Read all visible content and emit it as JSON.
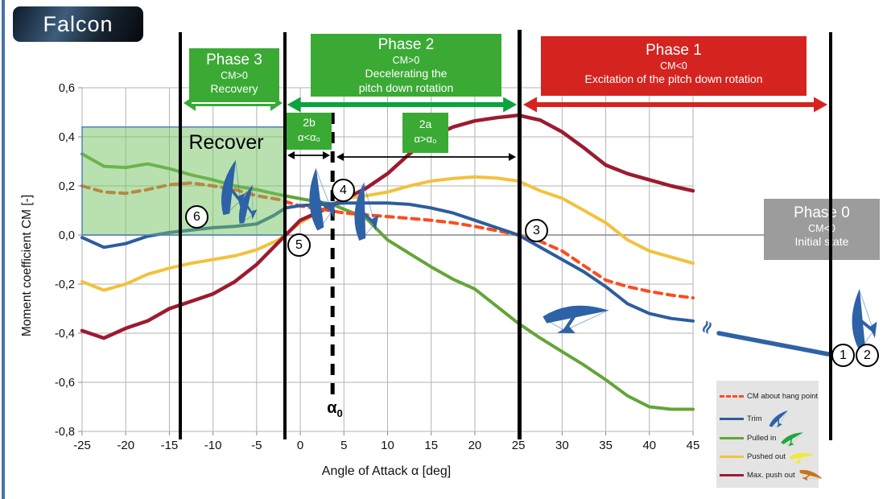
{
  "logo": {
    "text": "Falcon"
  },
  "colors": {
    "phase_green": "#3aaa35",
    "arrow_green": "#0aa33c",
    "phase_red": "#d52320",
    "phase_gray": "#9c9c9c",
    "trim_blue": "#2c5d9d",
    "pulled_green": "#63a537",
    "pushed_yellow": "#f2c23e",
    "max_dark_red": "#9c1b31",
    "hangpoint_orange": "#fb4c1f",
    "region_fill": "rgba(116,196,98,0.5)",
    "region_border": "#4f81bd",
    "glider_blue": "#2e62a6",
    "grid": "#b3b3b3",
    "zero_line": "#878787"
  },
  "chart_data": {
    "type": "line",
    "title": "",
    "xlabel": "Angle of Attack α [deg]",
    "ylabel": "Moment coefficient CM [-]",
    "xlim": [
      -25,
      45
    ],
    "ylim": [
      -0.8,
      0.6
    ],
    "x_ticks": [
      -25,
      -20,
      -15,
      -10,
      -5,
      0,
      5,
      10,
      15,
      20,
      25,
      30,
      35,
      40,
      45
    ],
    "y_ticks": [
      0.6,
      0.4,
      0.2,
      0.0,
      -0.2,
      -0.4,
      -0.6,
      -0.8
    ],
    "y_tick_labels": [
      "0,6",
      "0,4",
      "0,2",
      "0,0",
      "-0,2",
      "-0,4",
      "-0,6",
      "-0,8"
    ],
    "grid": true,
    "alpha0": 3.7,
    "phase_boundaries_alpha": [
      -13.8,
      -1.7,
      25
    ],
    "recover_region": {
      "x": [
        -25,
        -1.7
      ],
      "y": [
        0.0,
        0.44
      ]
    },
    "series": [
      {
        "name": "CM about hang point",
        "color": "#fb4c1f",
        "dash": true,
        "points": [
          [
            -25,
            0.2
          ],
          [
            -22.5,
            0.175
          ],
          [
            -20,
            0.17
          ],
          [
            -17.5,
            0.185
          ],
          [
            -15,
            0.205
          ],
          [
            -12.5,
            0.212
          ],
          [
            -10,
            0.2
          ],
          [
            -7.5,
            0.185
          ],
          [
            -5,
            0.16
          ],
          [
            -2.5,
            0.145
          ],
          [
            0,
            0.118
          ],
          [
            2.5,
            0.105
          ],
          [
            5,
            0.09
          ],
          [
            7.5,
            0.082
          ],
          [
            10,
            0.075
          ],
          [
            12.5,
            0.068
          ],
          [
            15,
            0.06
          ],
          [
            17.5,
            0.05
          ],
          [
            20,
            0.035
          ],
          [
            22.5,
            0.018
          ],
          [
            25,
            0.0
          ],
          [
            27.5,
            -0.026
          ],
          [
            30,
            -0.065
          ],
          [
            32.5,
            -0.125
          ],
          [
            35,
            -0.184
          ],
          [
            37.5,
            -0.21
          ],
          [
            40,
            -0.23
          ],
          [
            42.5,
            -0.245
          ],
          [
            45,
            -0.256
          ]
        ]
      },
      {
        "name": "Trim",
        "color": "#2c5d9d",
        "dash": false,
        "points": [
          [
            -25,
            -0.01
          ],
          [
            -22.5,
            -0.05
          ],
          [
            -20,
            -0.035
          ],
          [
            -17.5,
            -0.005
          ],
          [
            -15,
            0.01
          ],
          [
            -12.5,
            0.02
          ],
          [
            -10,
            0.03
          ],
          [
            -7.5,
            0.035
          ],
          [
            -5,
            0.045
          ],
          [
            -3,
            0.08
          ],
          [
            -1.7,
            0.11
          ],
          [
            0,
            0.12
          ],
          [
            2.5,
            0.125
          ],
          [
            5,
            0.13
          ],
          [
            7.5,
            0.13
          ],
          [
            10,
            0.13
          ],
          [
            12.5,
            0.125
          ],
          [
            15,
            0.11
          ],
          [
            17.5,
            0.09
          ],
          [
            20,
            0.06
          ],
          [
            22.5,
            0.03
          ],
          [
            25,
            0.0
          ],
          [
            27.5,
            -0.05
          ],
          [
            30,
            -0.1
          ],
          [
            32.5,
            -0.15
          ],
          [
            35,
            -0.21
          ],
          [
            37.5,
            -0.28
          ],
          [
            40,
            -0.32
          ],
          [
            42.5,
            -0.34
          ],
          [
            45,
            -0.35
          ]
        ]
      },
      {
        "name": "Pulled in",
        "color": "#63a537",
        "dash": false,
        "points": [
          [
            -25,
            0.33
          ],
          [
            -22.5,
            0.28
          ],
          [
            -20,
            0.275
          ],
          [
            -17.5,
            0.29
          ],
          [
            -15,
            0.27
          ],
          [
            -12.5,
            0.245
          ],
          [
            -10,
            0.225
          ],
          [
            -7.5,
            0.2
          ],
          [
            -5,
            0.185
          ],
          [
            -2.5,
            0.165
          ],
          [
            0,
            0.148
          ],
          [
            3.7,
            0.125
          ],
          [
            5,
            0.105
          ],
          [
            7.5,
            0.07
          ],
          [
            10,
            -0.02
          ],
          [
            12.5,
            -0.075
          ],
          [
            15,
            -0.13
          ],
          [
            17.5,
            -0.18
          ],
          [
            20,
            -0.22
          ],
          [
            22.5,
            -0.29
          ],
          [
            25,
            -0.36
          ],
          [
            27.5,
            -0.42
          ],
          [
            30,
            -0.475
          ],
          [
            32.5,
            -0.53
          ],
          [
            35,
            -0.59
          ],
          [
            37.5,
            -0.655
          ],
          [
            40,
            -0.7
          ],
          [
            42.5,
            -0.71
          ],
          [
            45,
            -0.71
          ]
        ]
      },
      {
        "name": "Pushed out",
        "color": "#f2c23e",
        "dash": false,
        "points": [
          [
            -25,
            -0.19
          ],
          [
            -22.5,
            -0.225
          ],
          [
            -20,
            -0.2
          ],
          [
            -17.5,
            -0.16
          ],
          [
            -15,
            -0.135
          ],
          [
            -12.5,
            -0.115
          ],
          [
            -10,
            -0.1
          ],
          [
            -7.5,
            -0.085
          ],
          [
            -5,
            -0.06
          ],
          [
            -2.5,
            -0.02
          ],
          [
            0,
            0.05
          ],
          [
            3.7,
            0.125
          ],
          [
            5,
            0.148
          ],
          [
            7.5,
            0.16
          ],
          [
            10,
            0.175
          ],
          [
            12.5,
            0.2
          ],
          [
            15,
            0.22
          ],
          [
            17.5,
            0.23
          ],
          [
            20,
            0.237
          ],
          [
            22.5,
            0.232
          ],
          [
            25,
            0.22
          ],
          [
            27.5,
            0.18
          ],
          [
            30,
            0.15
          ],
          [
            32.5,
            0.1
          ],
          [
            35,
            0.05
          ],
          [
            37.5,
            -0.02
          ],
          [
            40,
            -0.065
          ],
          [
            42.5,
            -0.09
          ],
          [
            45,
            -0.115
          ]
        ]
      },
      {
        "name": "Max. push out",
        "color": "#9c1b31",
        "dash": false,
        "points": [
          [
            -25,
            -0.39
          ],
          [
            -22.5,
            -0.42
          ],
          [
            -20,
            -0.38
          ],
          [
            -17.5,
            -0.35
          ],
          [
            -15,
            -0.3
          ],
          [
            -12.5,
            -0.27
          ],
          [
            -10,
            -0.24
          ],
          [
            -7.5,
            -0.19
          ],
          [
            -5,
            -0.12
          ],
          [
            -2.5,
            -0.03
          ],
          [
            0,
            0.06
          ],
          [
            2.5,
            0.1
          ],
          [
            5,
            0.145
          ],
          [
            7.5,
            0.19
          ],
          [
            10,
            0.25
          ],
          [
            12.5,
            0.33
          ],
          [
            15,
            0.4
          ],
          [
            17.5,
            0.44
          ],
          [
            20,
            0.465
          ],
          [
            22.5,
            0.478
          ],
          [
            25,
            0.488
          ],
          [
            27.5,
            0.468
          ],
          [
            30,
            0.42
          ],
          [
            32.5,
            0.355
          ],
          [
            35,
            0.285
          ],
          [
            37.5,
            0.25
          ],
          [
            40,
            0.225
          ],
          [
            42.5,
            0.2
          ],
          [
            45,
            0.18
          ]
        ]
      }
    ]
  },
  "phases": {
    "p3": {
      "title": "Phase 3",
      "cm": "CM>0",
      "desc": "Recovery"
    },
    "p2": {
      "title": "Phase 2",
      "cm": "CM>0",
      "desc1": "Decelerating the",
      "desc2": "pitch down rotation"
    },
    "p1": {
      "title": "Phase 1",
      "cm": "CM<0",
      "desc": "Excitation of the pitch down rotation"
    },
    "p0": {
      "title": "Phase 0",
      "cm": "CM<0",
      "desc": "Initial state"
    }
  },
  "subphases": {
    "b": {
      "label": "2b",
      "cond": "α<α₀"
    },
    "a": {
      "label": "2a",
      "cond": "α>α₀"
    }
  },
  "annotations": {
    "recover": "Recover",
    "alpha0_base": "α",
    "alpha0_sub": "0",
    "break_symbol": "≈"
  },
  "markers": {
    "labels": [
      "1",
      "2",
      "3",
      "4",
      "5",
      "6"
    ]
  },
  "legend": {
    "items": [
      {
        "label": "CM about hang point",
        "color": "#fb4c1f",
        "dash": true,
        "glider": null
      },
      {
        "label": "Trim",
        "color": "#2c5d9d",
        "dash": false,
        "glider": "#2e62a6",
        "rot": -20
      },
      {
        "label": "Pulled in",
        "color": "#63a537",
        "dash": false,
        "glider": "#21a63c",
        "rot": -5
      },
      {
        "label": "Pushed out",
        "color": "#f2c23e",
        "dash": false,
        "glider": "#f0ea30",
        "rot": 15
      },
      {
        "label": "Max. push out",
        "color": "#9c1b31",
        "dash": false,
        "glider": "#c87418",
        "rot": 40
      }
    ]
  }
}
